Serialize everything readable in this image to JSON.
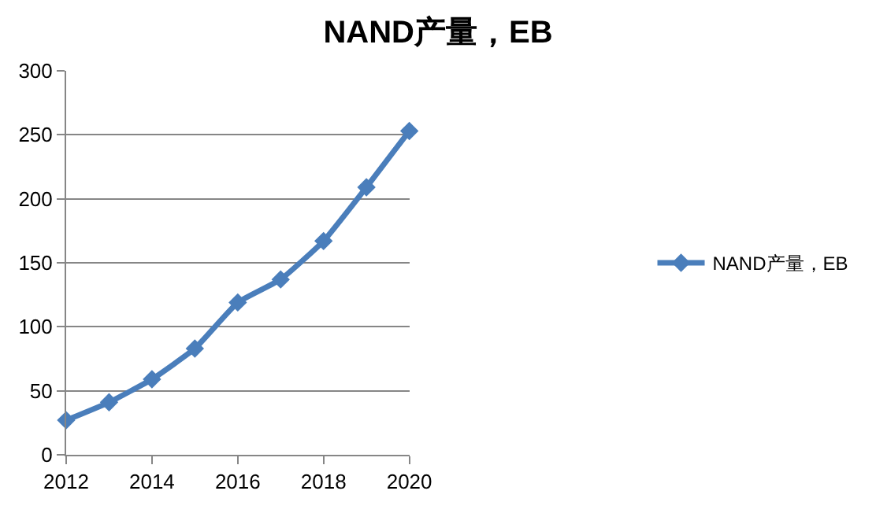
{
  "chart_data": {
    "type": "line",
    "title": "NAND产量，EB",
    "x": [
      2012,
      2013,
      2014,
      2015,
      2016,
      2017,
      2018,
      2019,
      2020
    ],
    "series": [
      {
        "name": "NAND产量，EB",
        "color": "#4a7ebb",
        "values": [
          27,
          41,
          59,
          83,
          119,
          137,
          167,
          209,
          253
        ]
      }
    ],
    "xlim": [
      2012,
      2020
    ],
    "xticks": [
      2012,
      2014,
      2016,
      2018,
      2020
    ],
    "ylim": [
      0,
      300
    ],
    "yticks": [
      0,
      50,
      100,
      150,
      200,
      250,
      300
    ],
    "grid": "y",
    "legend": "right",
    "marker": "diamond",
    "line_style": "solid"
  }
}
